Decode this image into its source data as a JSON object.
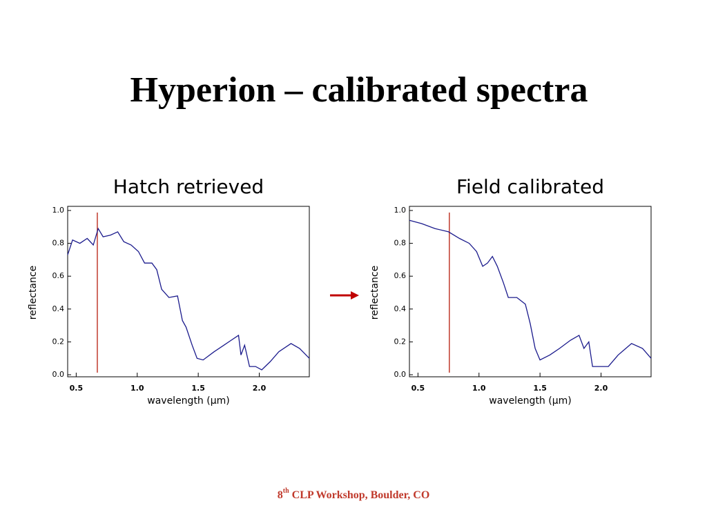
{
  "slide": {
    "title": "Hyperion – calibrated spectra",
    "footer_number": "8",
    "footer_sup": "th",
    "footer_text": " CLP Workshop, Boulder, CO"
  },
  "chart_data": [
    {
      "type": "line",
      "title": "Hatch retrieved",
      "x_label": "wavelength (μm)",
      "y_label": "reflectance",
      "xlim": [
        0.43,
        2.41
      ],
      "ylim": [
        0,
        1
      ],
      "xticks": [
        0.5,
        {
          "value": 1,
          "label": "1.0"
        },
        1.5,
        {
          "value": 2,
          "label": "2.0"
        }
      ],
      "yticks": [
        {
          "value": 0,
          "label": "0.0"
        },
        0.2,
        0.4,
        0.6,
        0.8,
        {
          "value": 1,
          "label": "1.0"
        }
      ],
      "marker_x": 0.673,
      "marker_color": "#c0392b",
      "x": [
        0.43,
        0.47,
        0.53,
        0.59,
        0.64,
        0.68,
        0.72,
        0.78,
        0.84,
        0.89,
        0.95,
        1.01,
        1.06,
        1.12,
        1.16,
        1.2,
        1.26,
        1.33,
        1.37,
        1.4,
        1.45,
        1.49,
        1.54,
        1.63,
        1.71,
        1.77,
        1.83,
        1.85,
        1.88,
        1.92,
        1.97,
        2.02,
        2.09,
        2.16,
        2.26,
        2.33,
        2.41
      ],
      "series": [
        {
          "color": "#1a1a8c",
          "values": [
            0.73,
            0.82,
            0.8,
            0.83,
            0.79,
            0.89,
            0.84,
            0.85,
            0.87,
            0.81,
            0.79,
            0.75,
            0.68,
            0.68,
            0.64,
            0.52,
            0.47,
            0.48,
            0.33,
            0.29,
            0.18,
            0.1,
            0.09,
            0.14,
            0.18,
            0.21,
            0.24,
            0.12,
            0.18,
            0.05,
            0.05,
            0.03,
            0.08,
            0.14,
            0.19,
            0.16,
            0.1
          ]
        }
      ]
    },
    {
      "type": "line",
      "title": "Field calibrated",
      "x_label": "wavelength (μm)",
      "y_label": "reflectance",
      "xlim": [
        0.43,
        2.41
      ],
      "ylim": [
        0,
        1
      ],
      "xticks": [
        0.5,
        {
          "value": 1,
          "label": "1.0"
        },
        1.5,
        {
          "value": 2,
          "label": "2.0"
        }
      ],
      "yticks": [
        {
          "value": 0,
          "label": "0.0"
        },
        0.2,
        0.4,
        0.6,
        0.8,
        {
          "value": 1,
          "label": "1.0"
        }
      ],
      "marker_x": 0.757,
      "marker_color": "#c0392b",
      "x": [
        0.43,
        0.53,
        0.64,
        0.75,
        0.84,
        0.92,
        0.98,
        1.03,
        1.07,
        1.11,
        1.15,
        1.2,
        1.24,
        1.31,
        1.38,
        1.42,
        1.46,
        1.5,
        1.58,
        1.66,
        1.75,
        1.82,
        1.86,
        1.9,
        1.93,
        2.0,
        2.06,
        2.14,
        2.25,
        2.34,
        2.41
      ],
      "series": [
        {
          "color": "#1a1a8c",
          "values": [
            0.94,
            0.92,
            0.89,
            0.87,
            0.83,
            0.8,
            0.75,
            0.66,
            0.68,
            0.72,
            0.66,
            0.56,
            0.47,
            0.47,
            0.43,
            0.31,
            0.16,
            0.09,
            0.12,
            0.16,
            0.21,
            0.24,
            0.16,
            0.2,
            0.05,
            0.05,
            0.05,
            0.12,
            0.19,
            0.16,
            0.1
          ]
        }
      ]
    }
  ]
}
